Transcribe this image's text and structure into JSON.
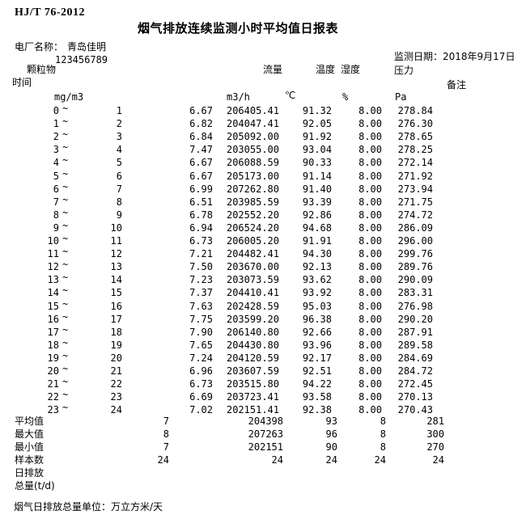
{
  "meta": {
    "standard": "HJ/T 76-2012",
    "title": "烟气排放连续监测小时平均值日报表"
  },
  "info": {
    "plant_label": "电厂名称：",
    "plant_name": "青岛佳明",
    "backtick": "`",
    "plant_code": "123456789",
    "date_label": "监测日期：",
    "date_value": "2018年9月17日"
  },
  "columns": {
    "time_label": "时间",
    "dust_label": "颗粒物",
    "flow_label": "流量",
    "temp_label": "温度",
    "humidity_label": "湿度",
    "pressure_label": "压力",
    "remark_label": "备注",
    "units": {
      "dust": "mg/m3",
      "flow": "m3/h",
      "temp": "℃",
      "humidity": "%",
      "pressure": "Pa"
    }
  },
  "tilde": "~",
  "rows": [
    {
      "start": "0",
      "end": "1",
      "dust": "6.67",
      "flow": "206405.41",
      "temp": "91.32",
      "humidity": "8.00",
      "pressure": "278.84"
    },
    {
      "start": "1",
      "end": "2",
      "dust": "6.82",
      "flow": "204047.41",
      "temp": "92.05",
      "humidity": "8.00",
      "pressure": "276.30"
    },
    {
      "start": "2",
      "end": "3",
      "dust": "6.84",
      "flow": "205092.00",
      "temp": "91.92",
      "humidity": "8.00",
      "pressure": "278.65"
    },
    {
      "start": "3",
      "end": "4",
      "dust": "7.47",
      "flow": "203055.00",
      "temp": "93.04",
      "humidity": "8.00",
      "pressure": "278.25"
    },
    {
      "start": "4",
      "end": "5",
      "dust": "6.67",
      "flow": "206088.59",
      "temp": "90.33",
      "humidity": "8.00",
      "pressure": "272.14"
    },
    {
      "start": "5",
      "end": "6",
      "dust": "6.67",
      "flow": "205173.00",
      "temp": "91.14",
      "humidity": "8.00",
      "pressure": "271.92"
    },
    {
      "start": "6",
      "end": "7",
      "dust": "6.99",
      "flow": "207262.80",
      "temp": "91.40",
      "humidity": "8.00",
      "pressure": "273.94"
    },
    {
      "start": "7",
      "end": "8",
      "dust": "6.51",
      "flow": "203985.59",
      "temp": "93.39",
      "humidity": "8.00",
      "pressure": "271.75"
    },
    {
      "start": "8",
      "end": "9",
      "dust": "6.78",
      "flow": "202552.20",
      "temp": "92.86",
      "humidity": "8.00",
      "pressure": "274.72"
    },
    {
      "start": "9",
      "end": "10",
      "dust": "6.94",
      "flow": "206524.20",
      "temp": "94.68",
      "humidity": "8.00",
      "pressure": "286.09"
    },
    {
      "start": "10",
      "end": "11",
      "dust": "6.73",
      "flow": "206005.20",
      "temp": "91.91",
      "humidity": "8.00",
      "pressure": "296.00"
    },
    {
      "start": "11",
      "end": "12",
      "dust": "7.21",
      "flow": "204482.41",
      "temp": "94.30",
      "humidity": "8.00",
      "pressure": "299.76"
    },
    {
      "start": "12",
      "end": "13",
      "dust": "7.50",
      "flow": "203670.00",
      "temp": "92.13",
      "humidity": "8.00",
      "pressure": "289.76"
    },
    {
      "start": "13",
      "end": "14",
      "dust": "7.23",
      "flow": "203073.59",
      "temp": "93.62",
      "humidity": "8.00",
      "pressure": "290.09"
    },
    {
      "start": "14",
      "end": "15",
      "dust": "7.37",
      "flow": "204410.41",
      "temp": "93.92",
      "humidity": "8.00",
      "pressure": "283.31"
    },
    {
      "start": "15",
      "end": "16",
      "dust": "7.63",
      "flow": "202428.59",
      "temp": "95.03",
      "humidity": "8.00",
      "pressure": "276.98"
    },
    {
      "start": "16",
      "end": "17",
      "dust": "7.75",
      "flow": "203599.20",
      "temp": "96.38",
      "humidity": "8.00",
      "pressure": "290.20"
    },
    {
      "start": "17",
      "end": "18",
      "dust": "7.90",
      "flow": "206140.80",
      "temp": "92.66",
      "humidity": "8.00",
      "pressure": "287.91"
    },
    {
      "start": "18",
      "end": "19",
      "dust": "7.65",
      "flow": "204430.80",
      "temp": "93.96",
      "humidity": "8.00",
      "pressure": "289.58"
    },
    {
      "start": "19",
      "end": "20",
      "dust": "7.24",
      "flow": "204120.59",
      "temp": "92.17",
      "humidity": "8.00",
      "pressure": "284.69"
    },
    {
      "start": "20",
      "end": "21",
      "dust": "6.96",
      "flow": "203607.59",
      "temp": "92.51",
      "humidity": "8.00",
      "pressure": "284.72"
    },
    {
      "start": "21",
      "end": "22",
      "dust": "6.73",
      "flow": "203515.80",
      "temp": "94.22",
      "humidity": "8.00",
      "pressure": "272.45"
    },
    {
      "start": "22",
      "end": "23",
      "dust": "6.69",
      "flow": "203723.41",
      "temp": "93.58",
      "humidity": "8.00",
      "pressure": "270.13"
    },
    {
      "start": "23",
      "end": "24",
      "dust": "7.02",
      "flow": "202151.41",
      "temp": "92.38",
      "humidity": "8.00",
      "pressure": "270.43"
    }
  ],
  "stats": [
    {
      "label": "平均值",
      "values": [
        "7",
        "204398",
        "93",
        "8",
        "281"
      ]
    },
    {
      "label": "最大值",
      "values": [
        "8",
        "207263",
        "96",
        "8",
        "300"
      ]
    },
    {
      "label": "最小值",
      "values": [
        "7",
        "202151",
        "90",
        "8",
        "270"
      ]
    },
    {
      "label": "样本数",
      "values": [
        "24",
        "24",
        "24",
        "24",
        "24"
      ]
    },
    {
      "label": "日排放",
      "values": []
    },
    {
      "label": "总量(t/d)",
      "values": []
    }
  ],
  "footnote": "烟气日排放总量单位：万立方米/天"
}
